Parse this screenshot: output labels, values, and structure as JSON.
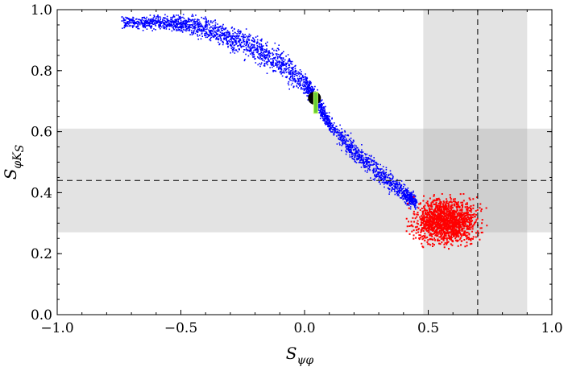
{
  "chart_data": {
    "type": "scatter",
    "title": "",
    "xlabel": "S",
    "xlabel_sub": "ψφ",
    "ylabel": "S",
    "ylabel_sub": "φK",
    "ylabel_subsub": "S",
    "xlim": [
      -1.0,
      1.0
    ],
    "ylim": [
      0.0,
      1.0
    ],
    "x_ticks": [
      {
        "value": -1.0,
        "label": "−1.0"
      },
      {
        "value": -0.5,
        "label": "−0.5"
      },
      {
        "value": 0.0,
        "label": "0.0"
      },
      {
        "value": 0.5,
        "label": "0.5"
      },
      {
        "value": 1.0,
        "label": "1.0"
      }
    ],
    "y_ticks": [
      {
        "value": 0.0,
        "label": "0.0"
      },
      {
        "value": 0.2,
        "label": "0.2"
      },
      {
        "value": 0.4,
        "label": "0.4"
      },
      {
        "value": 0.6,
        "label": "0.6"
      },
      {
        "value": 0.8,
        "label": "0.8"
      },
      {
        "value": 1.0,
        "label": "1.0"
      }
    ],
    "grid": false,
    "bands": {
      "vertical": {
        "xmin": 0.48,
        "xmax": 0.9,
        "color": "#e3e3e3"
      },
      "horizontal": {
        "ymin": 0.27,
        "ymax": 0.61,
        "color": "#e3e3e3"
      },
      "overlap_color": "#cfcfcf"
    },
    "reference_lines": {
      "x": 0.7,
      "y": 0.44,
      "style": "dashed"
    },
    "series": [
      {
        "color": "#0000ff",
        "centerline": [
          [
            -0.74,
            0.96
          ],
          [
            -0.6,
            0.96
          ],
          [
            -0.5,
            0.955
          ],
          [
            -0.4,
            0.94
          ],
          [
            -0.3,
            0.91
          ],
          [
            -0.2,
            0.875
          ],
          [
            -0.1,
            0.825
          ],
          [
            0.0,
            0.76
          ],
          [
            0.05,
            0.7
          ],
          [
            0.1,
            0.625
          ],
          [
            0.2,
            0.535
          ],
          [
            0.3,
            0.465
          ],
          [
            0.4,
            0.4
          ],
          [
            0.45,
            0.37
          ]
        ],
        "half_width": [
          0.015,
          0.02,
          0.025,
          0.03,
          0.035,
          0.04,
          0.04,
          0.035,
          0.025,
          0.025,
          0.03,
          0.03,
          0.025,
          0.02
        ]
      },
      {
        "color": "#ff0000",
        "center": [
          0.57,
          0.31
        ],
        "x_range": [
          0.4,
          0.82
        ],
        "y_range": [
          0.2,
          0.4
        ]
      }
    ],
    "marker": {
      "x": 0.04,
      "y": 0.71,
      "fill": "#000000"
    },
    "marker_bar": {
      "x": 0.045,
      "ymin": 0.66,
      "ymax": 0.73,
      "fill": "#66cc33"
    }
  }
}
